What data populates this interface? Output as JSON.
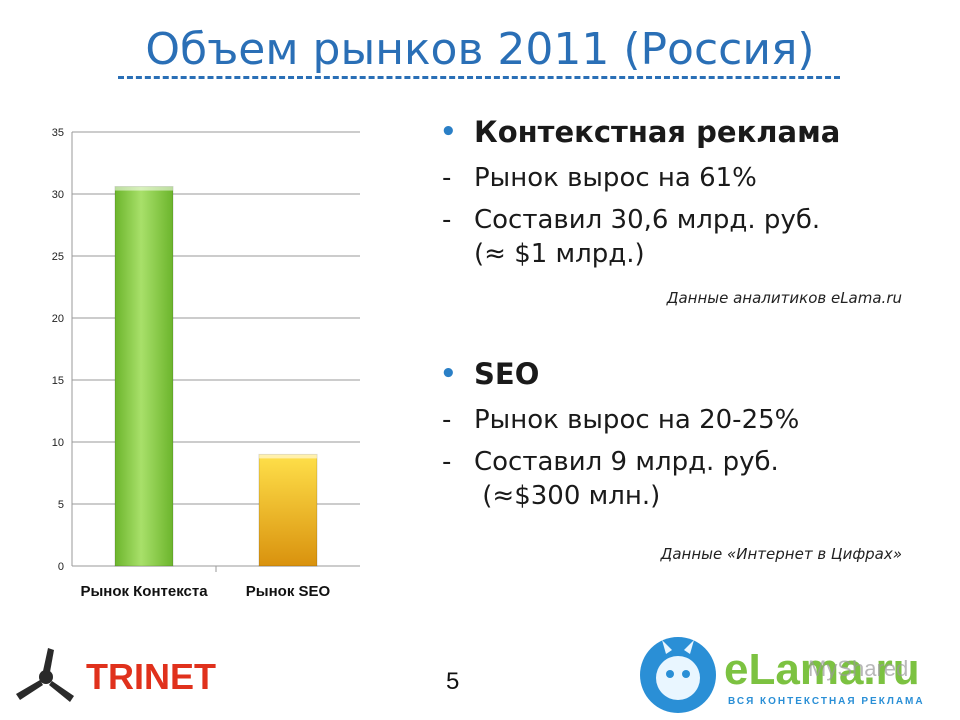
{
  "title": "Объем рынков 2011 (Россия)",
  "chart_data": {
    "type": "bar",
    "categories": [
      "Рынок Контекста",
      "Рынок SEO"
    ],
    "values": [
      30.6,
      9
    ],
    "ylim": [
      0,
      35
    ],
    "yticks": [
      0,
      5,
      10,
      15,
      20,
      25,
      30,
      35
    ],
    "grid": true,
    "colors": [
      "#8fd14f",
      "#f0b41a"
    ]
  },
  "context": {
    "heading": "Контекстная реклама",
    "lines": [
      "Рынок вырос на 61%",
      "Составил 30,6 млрд. руб."
    ],
    "continuation": "(≈ $1 млрд.)",
    "source": "Данные аналитиков eLama.ru"
  },
  "seo": {
    "heading": "SEO",
    "lines": [
      "Рынок вырос на 20-25%",
      "Составил 9 млрд. руб."
    ],
    "continuation": " (≈$300 млн.)",
    "source": "Данные «Интернет в Цифрах»"
  },
  "page_number": "5",
  "logos": {
    "trinet": "TRINET",
    "elama": "eLama.ru",
    "elama_tagline": "ВСЯ КОНТЕКСТНАЯ РЕКЛАМА",
    "watermark": "MyShared"
  },
  "colors": {
    "title": "#2a6fb6",
    "bullet": "#2a7fc6",
    "trinet_red": "#e0311c",
    "elama_green": "#7cc241",
    "elama_blue": "#2a8fd6"
  }
}
